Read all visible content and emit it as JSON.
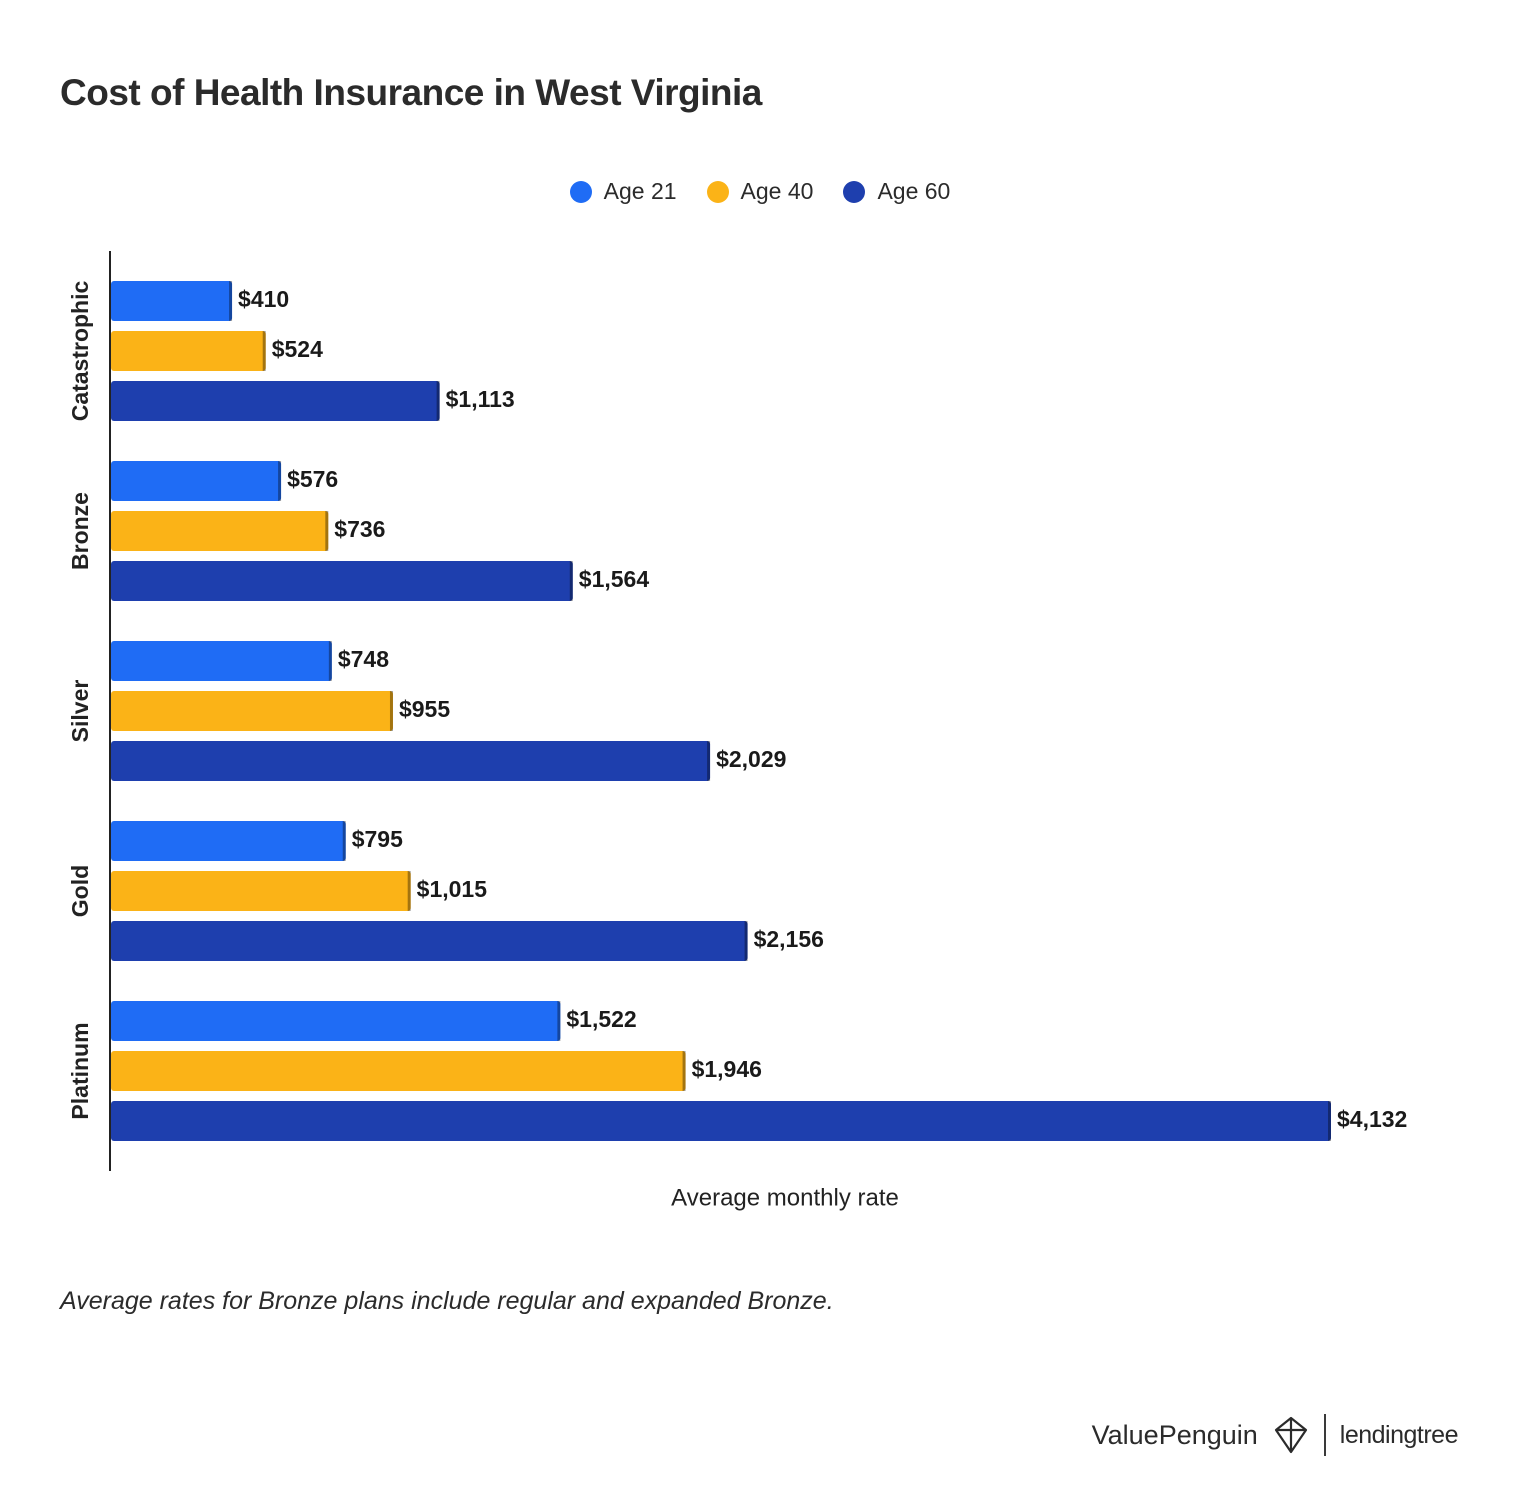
{
  "title": "Cost of Health Insurance in West Virginia",
  "note": "Average rates for Bronze plans include regular and expanded Bronze.",
  "branding": {
    "valuepenguin": "ValuePenguin",
    "lendingtree": "lendingtree"
  },
  "colors": {
    "age21": "#1f6cf5",
    "age40": "#fbb317",
    "age60": "#1e3fae"
  },
  "chart_data": {
    "type": "bar",
    "orientation": "horizontal",
    "title": "Cost of Health Insurance in West Virginia",
    "xlabel": "Average monthly rate",
    "ylabel": "",
    "categories": [
      "Catastrophic",
      "Bronze",
      "Silver",
      "Gold",
      "Platinum"
    ],
    "series": [
      {
        "name": "Age 21",
        "color": "#1f6cf5",
        "values": [
          410,
          576,
          748,
          795,
          1522
        ],
        "labels": [
          "$410",
          "$576",
          "$748",
          "$795",
          "$1,522"
        ]
      },
      {
        "name": "Age 40",
        "color": "#fbb317",
        "values": [
          524,
          736,
          955,
          1015,
          1946
        ],
        "labels": [
          "$524",
          "$736",
          "$955",
          "$1,015",
          "$1,946"
        ]
      },
      {
        "name": "Age 60",
        "color": "#1e3fae",
        "values": [
          1113,
          1564,
          2029,
          2156,
          4132
        ],
        "labels": [
          "$1,113",
          "$1,564",
          "$2,029",
          "$2,156",
          "$4,132"
        ]
      }
    ],
    "xlim": [
      0,
      4132
    ],
    "grid": false,
    "legend_position": "top-center"
  }
}
